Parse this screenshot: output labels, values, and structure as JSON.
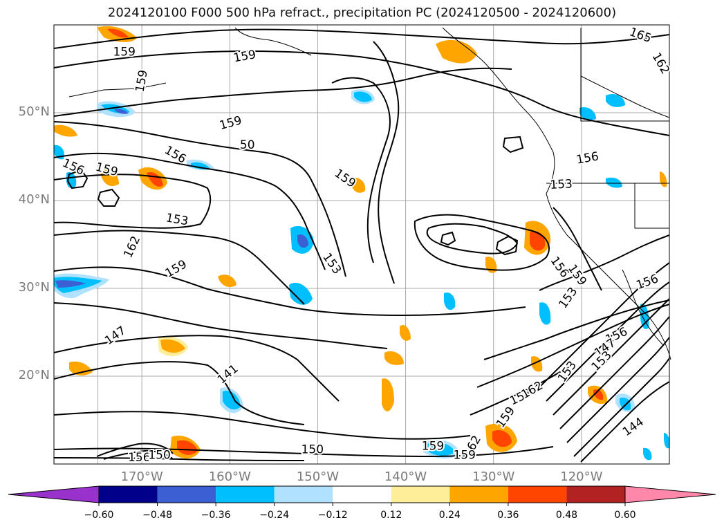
{
  "title": "2024120100 F000 500 hPa refract., precipitation PC (2024120500 - 2024120600)",
  "map": {
    "lon_range": [
      -180,
      -110
    ],
    "lat_range": [
      10,
      60
    ],
    "lat_labels": [
      {
        "lat": 50,
        "text": "50°N"
      },
      {
        "lat": 40,
        "text": "40°N"
      },
      {
        "lat": 30,
        "text": "30°N"
      },
      {
        "lat": 20,
        "text": "20°N"
      }
    ],
    "lon_labels": [
      {
        "lon": -170,
        "text": "170°W"
      },
      {
        "lon": -160,
        "text": "160°W"
      },
      {
        "lon": -150,
        "text": "150°W"
      },
      {
        "lon": -140,
        "text": "140°W"
      },
      {
        "lon": -130,
        "text": "130°W"
      },
      {
        "lon": -120,
        "text": "120°W"
      }
    ],
    "contour_labels": [
      {
        "text": "159",
        "lon": -172.0,
        "lat": 56.9,
        "angle": 0
      },
      {
        "text": "159",
        "lon": -158.3,
        "lat": 56.4,
        "angle": -10
      },
      {
        "text": "165",
        "lon": -113.3,
        "lat": 58.8,
        "angle": 20
      },
      {
        "text": "162",
        "lon": -111.0,
        "lat": 55.6,
        "angle": 60
      },
      {
        "text": "159",
        "lon": -170.0,
        "lat": 53.6,
        "angle": -80
      },
      {
        "text": "50",
        "lon": -158.0,
        "lat": 46.3,
        "angle": 0
      },
      {
        "text": "159",
        "lon": -159.9,
        "lat": 48.8,
        "angle": -15
      },
      {
        "text": "156",
        "lon": -177.8,
        "lat": 43.8,
        "angle": 25
      },
      {
        "text": "159",
        "lon": -174.0,
        "lat": 43.5,
        "angle": 15
      },
      {
        "text": "156",
        "lon": -166.2,
        "lat": 45.2,
        "angle": 30
      },
      {
        "text": "159",
        "lon": -146.9,
        "lat": 42.5,
        "angle": 35
      },
      {
        "text": "156",
        "lon": -119.3,
        "lat": 44.8,
        "angle": -10
      },
      {
        "text": "153",
        "lon": -122.3,
        "lat": 41.8,
        "angle": -3
      },
      {
        "text": "153",
        "lon": -166.0,
        "lat": 37.8,
        "angle": 10
      },
      {
        "text": "162",
        "lon": -171.1,
        "lat": 34.7,
        "angle": -65
      },
      {
        "text": "159",
        "lon": -166.1,
        "lat": 32.2,
        "angle": -30
      },
      {
        "text": "153",
        "lon": -148.4,
        "lat": 32.8,
        "angle": 55
      },
      {
        "text": "156",
        "lon": -122.5,
        "lat": 32.4,
        "angle": 55
      },
      {
        "text": "159",
        "lon": -120.5,
        "lat": 31.5,
        "angle": 55
      },
      {
        "text": "153",
        "lon": -121.5,
        "lat": 28.9,
        "angle": -55
      },
      {
        "text": "156",
        "lon": -112.5,
        "lat": 30.7,
        "angle": -20
      },
      {
        "text": "147",
        "lon": -173.0,
        "lat": 24.6,
        "angle": -35
      },
      {
        "text": "156",
        "lon": -116.0,
        "lat": 24.6,
        "angle": -25
      },
      {
        "text": "147",
        "lon": -117.3,
        "lat": 23.2,
        "angle": -35
      },
      {
        "text": "153",
        "lon": -117.7,
        "lat": 21.7,
        "angle": -45
      },
      {
        "text": "153",
        "lon": -121.6,
        "lat": 20.5,
        "angle": -55
      },
      {
        "text": "141",
        "lon": -160.2,
        "lat": 20.2,
        "angle": -40
      },
      {
        "text": "153",
        "lon": -126.9,
        "lat": 17.6,
        "angle": -25
      },
      {
        "text": "162",
        "lon": -125.6,
        "lat": 18.4,
        "angle": -30
      },
      {
        "text": "159",
        "lon": -128.6,
        "lat": 15.3,
        "angle": -55
      },
      {
        "text": "144",
        "lon": -114.1,
        "lat": 14.2,
        "angle": -35
      },
      {
        "text": "159",
        "lon": -136.9,
        "lat": 12.0,
        "angle": 0
      },
      {
        "text": "162",
        "lon": -132.4,
        "lat": 12.0,
        "angle": -60
      },
      {
        "text": "159",
        "lon": -133.3,
        "lat": 11.0,
        "angle": 0
      },
      {
        "text": "150",
        "lon": -150.6,
        "lat": 11.6,
        "angle": 0
      },
      {
        "text": "156",
        "lon": -170.3,
        "lat": 10.7,
        "angle": 0
      },
      {
        "text": "150",
        "lon": -168.0,
        "lat": 11.0,
        "angle": 0
      }
    ]
  },
  "colorbar": {
    "ticks": [
      "−0.60",
      "−0.48",
      "−0.36",
      "−0.24",
      "−0.12",
      "0.12",
      "0.24",
      "0.36",
      "0.48",
      "0.60"
    ],
    "colors": {
      "under": "#9932cc",
      "c1": "#00008b",
      "c2": "#3d5fd4",
      "c3": "#00bfff",
      "c4": "#b0e2ff",
      "c5": "#ffffff",
      "c6": "#ffee99",
      "c7": "#ffa500",
      "c8": "#ff4500",
      "c9": "#b22222",
      "over": "#ff88aa"
    }
  },
  "colors": {
    "grid": "#aaaaaa",
    "contour": "#000000",
    "axis_label": "#7a7a7a"
  }
}
